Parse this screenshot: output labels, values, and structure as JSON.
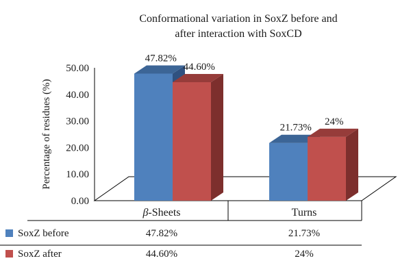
{
  "chart_data": {
    "type": "bar",
    "title_lines": [
      "Conformational variation in SoxZ before and",
      "after interaction with SoxCD"
    ],
    "xlabel": "",
    "ylabel": "Percentage of residues (%)",
    "ylim": [
      0,
      50
    ],
    "yticks": [
      "0.00",
      "10.00",
      "20.00",
      "30.00",
      "40.00",
      "50.00"
    ],
    "categories": [
      "β-Sheets",
      "Turns"
    ],
    "series": [
      {
        "name": "SoxZ before",
        "values": [
          47.82,
          21.73
        ],
        "labels": [
          "47.82%",
          "21.73%"
        ],
        "colors": {
          "front": "#4f81bd",
          "top": "#3c6596",
          "side": "#2f5180"
        }
      },
      {
        "name": "SoxZ after",
        "values": [
          44.6,
          24
        ],
        "labels": [
          "44.60%",
          "24%"
        ],
        "colors": {
          "front": "#c0504d",
          "top": "#963c3a",
          "side": "#7d2f2d"
        }
      }
    ],
    "legend": "data table below chart",
    "grid": false
  }
}
